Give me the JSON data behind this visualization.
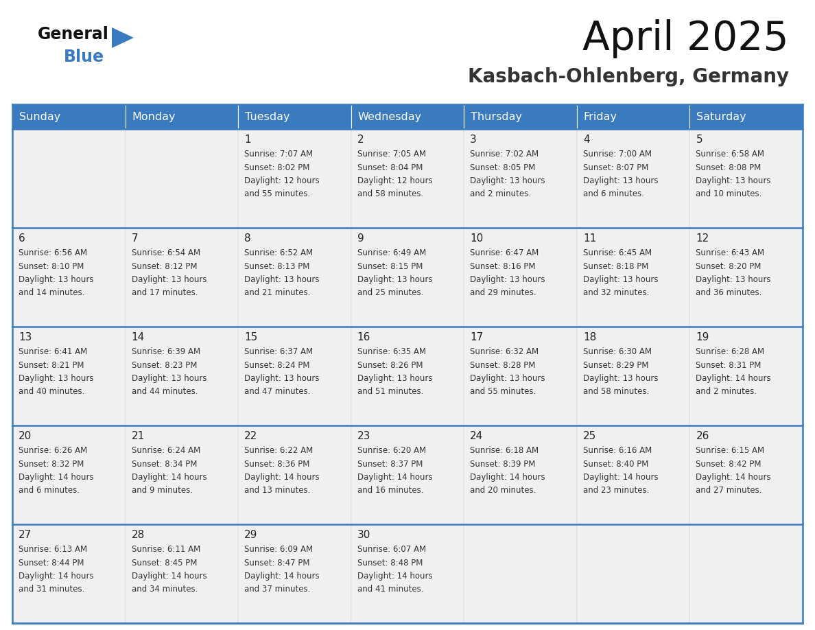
{
  "title": "April 2025",
  "subtitle": "Kasbach-Ohlenberg, Germany",
  "header_color": "#3a7abf",
  "header_text_color": "#ffffff",
  "cell_bg_odd": "#f0f0f0",
  "cell_bg_even": "#ffffff",
  "grid_line_color": "#3a7abf",
  "day_names": [
    "Sunday",
    "Monday",
    "Tuesday",
    "Wednesday",
    "Thursday",
    "Friday",
    "Saturday"
  ],
  "background_color": "#ffffff",
  "text_color": "#333333",
  "day_num_color": "#222222",
  "calendar_data": [
    [
      {
        "day": "",
        "sunrise": "",
        "sunset": "",
        "daylight": ""
      },
      {
        "day": "",
        "sunrise": "",
        "sunset": "",
        "daylight": ""
      },
      {
        "day": "1",
        "sunrise": "7:07 AM",
        "sunset": "8:02 PM",
        "daylight": "12 hours\nand 55 minutes."
      },
      {
        "day": "2",
        "sunrise": "7:05 AM",
        "sunset": "8:04 PM",
        "daylight": "12 hours\nand 58 minutes."
      },
      {
        "day": "3",
        "sunrise": "7:02 AM",
        "sunset": "8:05 PM",
        "daylight": "13 hours\nand 2 minutes."
      },
      {
        "day": "4",
        "sunrise": "7:00 AM",
        "sunset": "8:07 PM",
        "daylight": "13 hours\nand 6 minutes."
      },
      {
        "day": "5",
        "sunrise": "6:58 AM",
        "sunset": "8:08 PM",
        "daylight": "13 hours\nand 10 minutes."
      }
    ],
    [
      {
        "day": "6",
        "sunrise": "6:56 AM",
        "sunset": "8:10 PM",
        "daylight": "13 hours\nand 14 minutes."
      },
      {
        "day": "7",
        "sunrise": "6:54 AM",
        "sunset": "8:12 PM",
        "daylight": "13 hours\nand 17 minutes."
      },
      {
        "day": "8",
        "sunrise": "6:52 AM",
        "sunset": "8:13 PM",
        "daylight": "13 hours\nand 21 minutes."
      },
      {
        "day": "9",
        "sunrise": "6:49 AM",
        "sunset": "8:15 PM",
        "daylight": "13 hours\nand 25 minutes."
      },
      {
        "day": "10",
        "sunrise": "6:47 AM",
        "sunset": "8:16 PM",
        "daylight": "13 hours\nand 29 minutes."
      },
      {
        "day": "11",
        "sunrise": "6:45 AM",
        "sunset": "8:18 PM",
        "daylight": "13 hours\nand 32 minutes."
      },
      {
        "day": "12",
        "sunrise": "6:43 AM",
        "sunset": "8:20 PM",
        "daylight": "13 hours\nand 36 minutes."
      }
    ],
    [
      {
        "day": "13",
        "sunrise": "6:41 AM",
        "sunset": "8:21 PM",
        "daylight": "13 hours\nand 40 minutes."
      },
      {
        "day": "14",
        "sunrise": "6:39 AM",
        "sunset": "8:23 PM",
        "daylight": "13 hours\nand 44 minutes."
      },
      {
        "day": "15",
        "sunrise": "6:37 AM",
        "sunset": "8:24 PM",
        "daylight": "13 hours\nand 47 minutes."
      },
      {
        "day": "16",
        "sunrise": "6:35 AM",
        "sunset": "8:26 PM",
        "daylight": "13 hours\nand 51 minutes."
      },
      {
        "day": "17",
        "sunrise": "6:32 AM",
        "sunset": "8:28 PM",
        "daylight": "13 hours\nand 55 minutes."
      },
      {
        "day": "18",
        "sunrise": "6:30 AM",
        "sunset": "8:29 PM",
        "daylight": "13 hours\nand 58 minutes."
      },
      {
        "day": "19",
        "sunrise": "6:28 AM",
        "sunset": "8:31 PM",
        "daylight": "14 hours\nand 2 minutes."
      }
    ],
    [
      {
        "day": "20",
        "sunrise": "6:26 AM",
        "sunset": "8:32 PM",
        "daylight": "14 hours\nand 6 minutes."
      },
      {
        "day": "21",
        "sunrise": "6:24 AM",
        "sunset": "8:34 PM",
        "daylight": "14 hours\nand 9 minutes."
      },
      {
        "day": "22",
        "sunrise": "6:22 AM",
        "sunset": "8:36 PM",
        "daylight": "14 hours\nand 13 minutes."
      },
      {
        "day": "23",
        "sunrise": "6:20 AM",
        "sunset": "8:37 PM",
        "daylight": "14 hours\nand 16 minutes."
      },
      {
        "day": "24",
        "sunrise": "6:18 AM",
        "sunset": "8:39 PM",
        "daylight": "14 hours\nand 20 minutes."
      },
      {
        "day": "25",
        "sunrise": "6:16 AM",
        "sunset": "8:40 PM",
        "daylight": "14 hours\nand 23 minutes."
      },
      {
        "day": "26",
        "sunrise": "6:15 AM",
        "sunset": "8:42 PM",
        "daylight": "14 hours\nand 27 minutes."
      }
    ],
    [
      {
        "day": "27",
        "sunrise": "6:13 AM",
        "sunset": "8:44 PM",
        "daylight": "14 hours\nand 31 minutes."
      },
      {
        "day": "28",
        "sunrise": "6:11 AM",
        "sunset": "8:45 PM",
        "daylight": "14 hours\nand 34 minutes."
      },
      {
        "day": "29",
        "sunrise": "6:09 AM",
        "sunset": "8:47 PM",
        "daylight": "14 hours\nand 37 minutes."
      },
      {
        "day": "30",
        "sunrise": "6:07 AM",
        "sunset": "8:48 PM",
        "daylight": "14 hours\nand 41 minutes."
      },
      {
        "day": "",
        "sunrise": "",
        "sunset": "",
        "daylight": ""
      },
      {
        "day": "",
        "sunrise": "",
        "sunset": "",
        "daylight": ""
      },
      {
        "day": "",
        "sunrise": "",
        "sunset": "",
        "daylight": ""
      }
    ]
  ]
}
